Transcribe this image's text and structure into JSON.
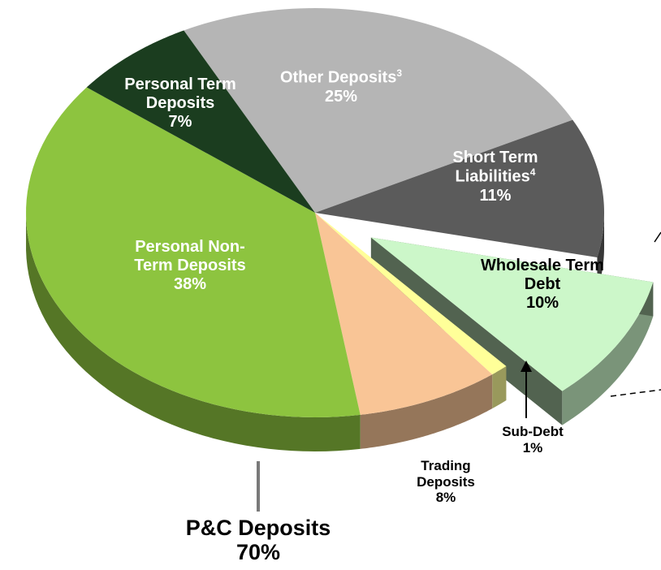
{
  "chart_data": {
    "type": "pie",
    "categories": [
      "Other Deposits",
      "Short Term Liabilities",
      "Wholesale Term Debt",
      "Sub-Debt",
      "Trading Deposits",
      "Personal Non-Term Deposits",
      "Personal Term Deposits"
    ],
    "footnotes": [
      "3",
      "4",
      null,
      null,
      null,
      null,
      null
    ],
    "values": [
      25,
      11,
      10,
      1,
      8,
      38,
      7
    ],
    "value_labels": [
      "25%",
      "11%",
      "10%",
      "1%",
      "8%",
      "38%",
      "7%"
    ],
    "colors": [
      "#b5b5b5",
      "#5b5b5b",
      "#ccf7c9",
      "#ffff99",
      "#f9c596",
      "#8dc43f",
      "#1b3d1f"
    ],
    "exploded": [
      false,
      false,
      true,
      false,
      false,
      false,
      false
    ],
    "annotation": [
      "P&C Deposits",
      "70%"
    ]
  }
}
